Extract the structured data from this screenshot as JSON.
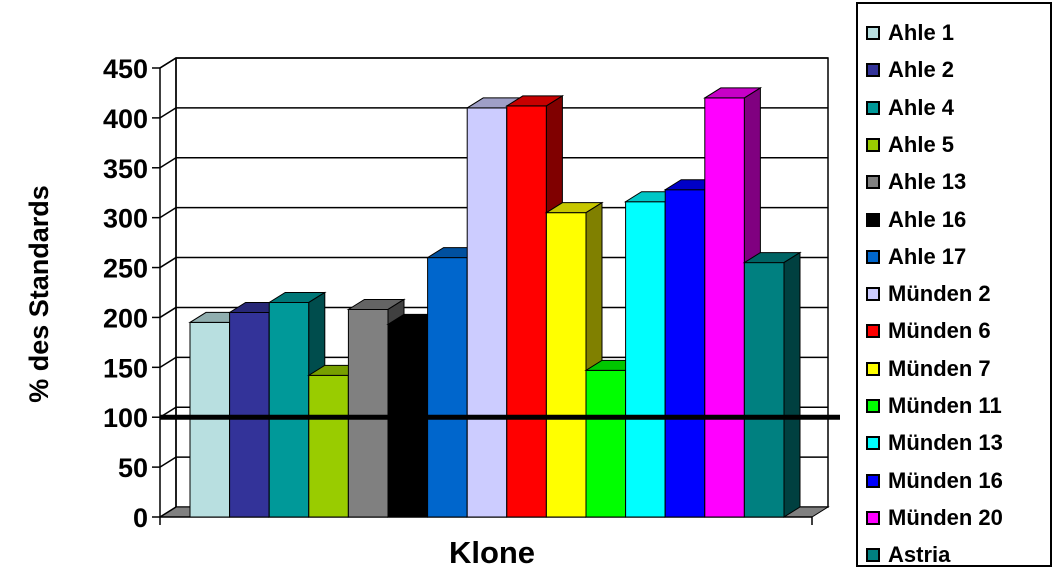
{
  "chart_data": {
    "type": "bar",
    "categories": [
      "Ahle 1",
      "Ahle 2",
      "Ahle 4",
      "Ahle 5",
      "Ahle 13",
      "Ahle 16",
      "Ahle 17",
      "Münden 2",
      "Münden 6",
      "Münden 7",
      "Münden 11",
      "Münden 13",
      "Münden 16",
      "Münden 20",
      "Astria"
    ],
    "values": [
      195,
      205,
      215,
      142,
      208,
      193,
      260,
      410,
      412,
      305,
      147,
      316,
      328,
      420,
      255
    ],
    "colors": [
      "#b8dfe0",
      "#333399",
      "#009999",
      "#99cc00",
      "#808080",
      "#000000",
      "#0066cc",
      "#ccccff",
      "#ff0000",
      "#ffff00",
      "#00ff00",
      "#00ffff",
      "#0000ff",
      "#ff00ff",
      "#008080"
    ],
    "title": "",
    "xlabel": "Klone",
    "ylabel": "% des Standards",
    "ylim": [
      0,
      450
    ],
    "yticks": [
      "0",
      "50",
      "100",
      "150",
      "200",
      "250",
      "300",
      "350",
      "400",
      "450"
    ],
    "reference_line": 100,
    "grid": true,
    "legend_position": "right",
    "style": "3d-bar"
  }
}
